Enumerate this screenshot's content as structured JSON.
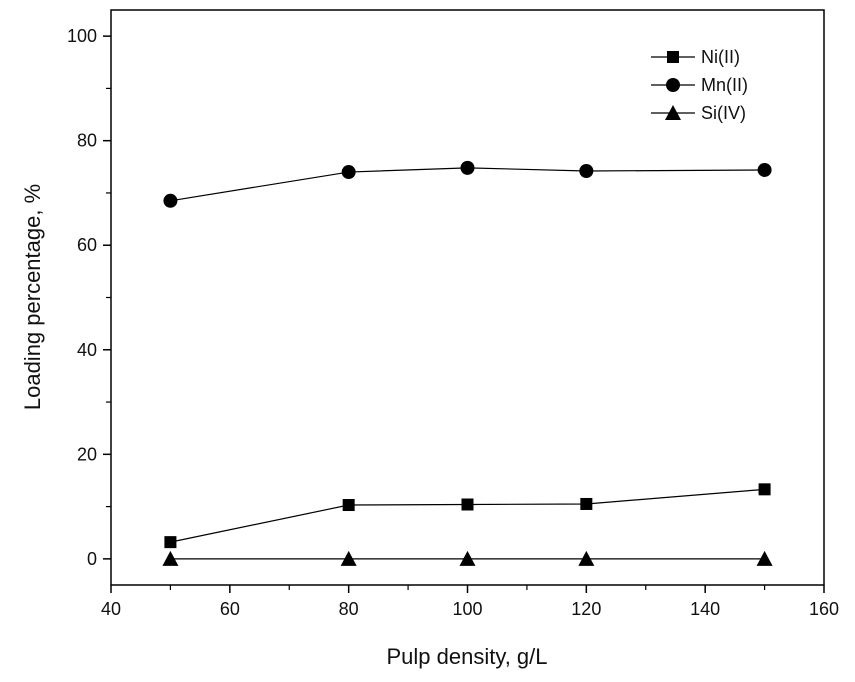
{
  "chart_data": {
    "type": "line",
    "title": "",
    "xlabel": "Pulp density, g/L",
    "ylabel": "Loading percentage, %",
    "xlim": [
      40,
      160
    ],
    "ylim": [
      -5,
      105
    ],
    "xticks": [
      40,
      60,
      80,
      100,
      120,
      140,
      160
    ],
    "xtick_labels": [
      "40",
      "60",
      "80",
      "100",
      "120",
      "140",
      "160"
    ],
    "yticks": [
      0,
      20,
      40,
      60,
      80,
      100
    ],
    "ytick_labels": [
      "0",
      "20",
      "40",
      "60",
      "80",
      "100"
    ],
    "grid": false,
    "legend_position": "top-right",
    "x": [
      50,
      80,
      100,
      120,
      150
    ],
    "series": [
      {
        "name": "Ni(II)",
        "marker": "square",
        "values": [
          3.2,
          10.3,
          10.4,
          10.5,
          13.3
        ]
      },
      {
        "name": "Mn(II)",
        "marker": "circle",
        "values": [
          68.5,
          74.0,
          74.8,
          74.2,
          74.4
        ]
      },
      {
        "name": "Si(IV)",
        "marker": "triangle",
        "values": [
          0,
          0,
          0,
          0,
          0
        ]
      }
    ],
    "colors": {
      "line": "#000000",
      "marker": "#000000",
      "background": "#ffffff"
    }
  }
}
